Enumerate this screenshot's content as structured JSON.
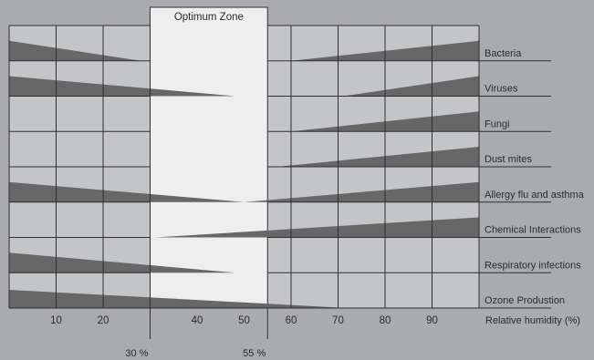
{
  "title": "Optimum Zone",
  "x_axis": {
    "label": "Relative humidity (%)",
    "ticks": [
      10,
      20,
      40,
      50,
      60,
      70,
      80,
      90
    ]
  },
  "optimum_zone": {
    "lower_label": "30 %",
    "upper_label": "55 %",
    "from": 30,
    "to": 55
  },
  "chart_data": {
    "type": "diagram",
    "title": "Optimum Zone",
    "xlabel": "Relative humidity (%)",
    "xlim": [
      0,
      100
    ],
    "optimum_range": [
      30,
      55
    ],
    "rows": [
      {
        "name": "Bacteria",
        "low_wedge": [
          0,
          28
        ],
        "high_wedge": [
          60,
          100
        ]
      },
      {
        "name": "Viruses",
        "low_wedge": [
          0,
          48
        ],
        "high_wedge": [
          71,
          100
        ]
      },
      {
        "name": "Fungi",
        "low_wedge": null,
        "high_wedge": [
          60,
          100
        ]
      },
      {
        "name": "Dust mites",
        "low_wedge": null,
        "high_wedge": [
          57,
          100
        ]
      },
      {
        "name": "Allergy flu and asthma",
        "low_wedge": [
          0,
          50
        ],
        "high_wedge": [
          50,
          100
        ]
      },
      {
        "name": "Chemical Interactions",
        "low_wedge": null,
        "high_wedge": [
          31,
          100
        ]
      },
      {
        "name": "Respiratory infections",
        "low_wedge": [
          0,
          48
        ],
        "high_wedge": null
      },
      {
        "name": "Ozone Produstion",
        "low_wedge": [
          0,
          72
        ],
        "high_wedge": null
      }
    ]
  },
  "colors": {
    "background": "#a9abae",
    "cell": "#c4c5c8",
    "zone": "#eeeeee",
    "wedge": "#676768",
    "line": "#2f2f2f",
    "text": "#2c2c2c"
  }
}
